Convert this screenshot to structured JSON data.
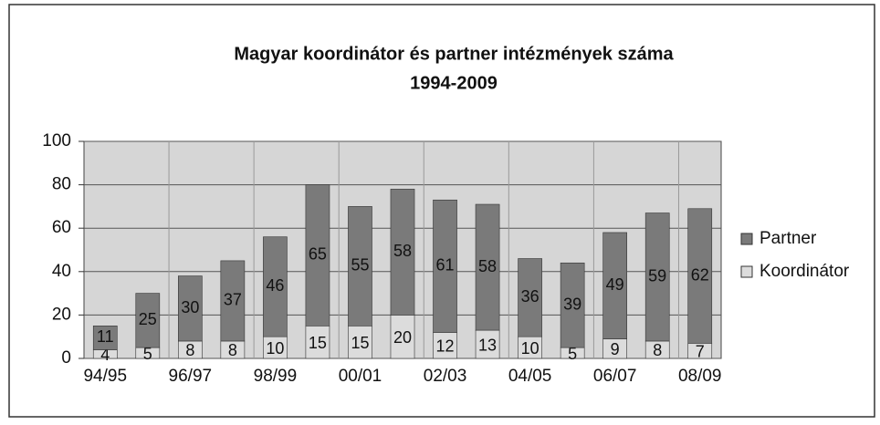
{
  "chart_data": {
    "type": "stacked_bar",
    "title": [
      "Magyar koordinátor és partner intézmények száma",
      "1994-2009"
    ],
    "categories": [
      "94/95",
      null,
      "96/97",
      null,
      "98/99",
      null,
      "00/01",
      null,
      "02/03",
      null,
      "04/05",
      null,
      "06/07",
      null,
      "08/09"
    ],
    "series": [
      {
        "name": "Koordinátor",
        "color": "#dcdcdc",
        "values": [
          4,
          5,
          8,
          8,
          10,
          15,
          15,
          20,
          12,
          13,
          10,
          5,
          9,
          8,
          7
        ]
      },
      {
        "name": "Partner",
        "color": "#7a7a7a",
        "values": [
          11,
          25,
          30,
          37,
          46,
          65,
          55,
          58,
          61,
          58,
          36,
          39,
          49,
          59,
          62
        ]
      }
    ],
    "ylim": [
      0,
      100
    ],
    "yticks": [
      0,
      20,
      40,
      60,
      80,
      100
    ],
    "grid": true,
    "legend": "right"
  }
}
